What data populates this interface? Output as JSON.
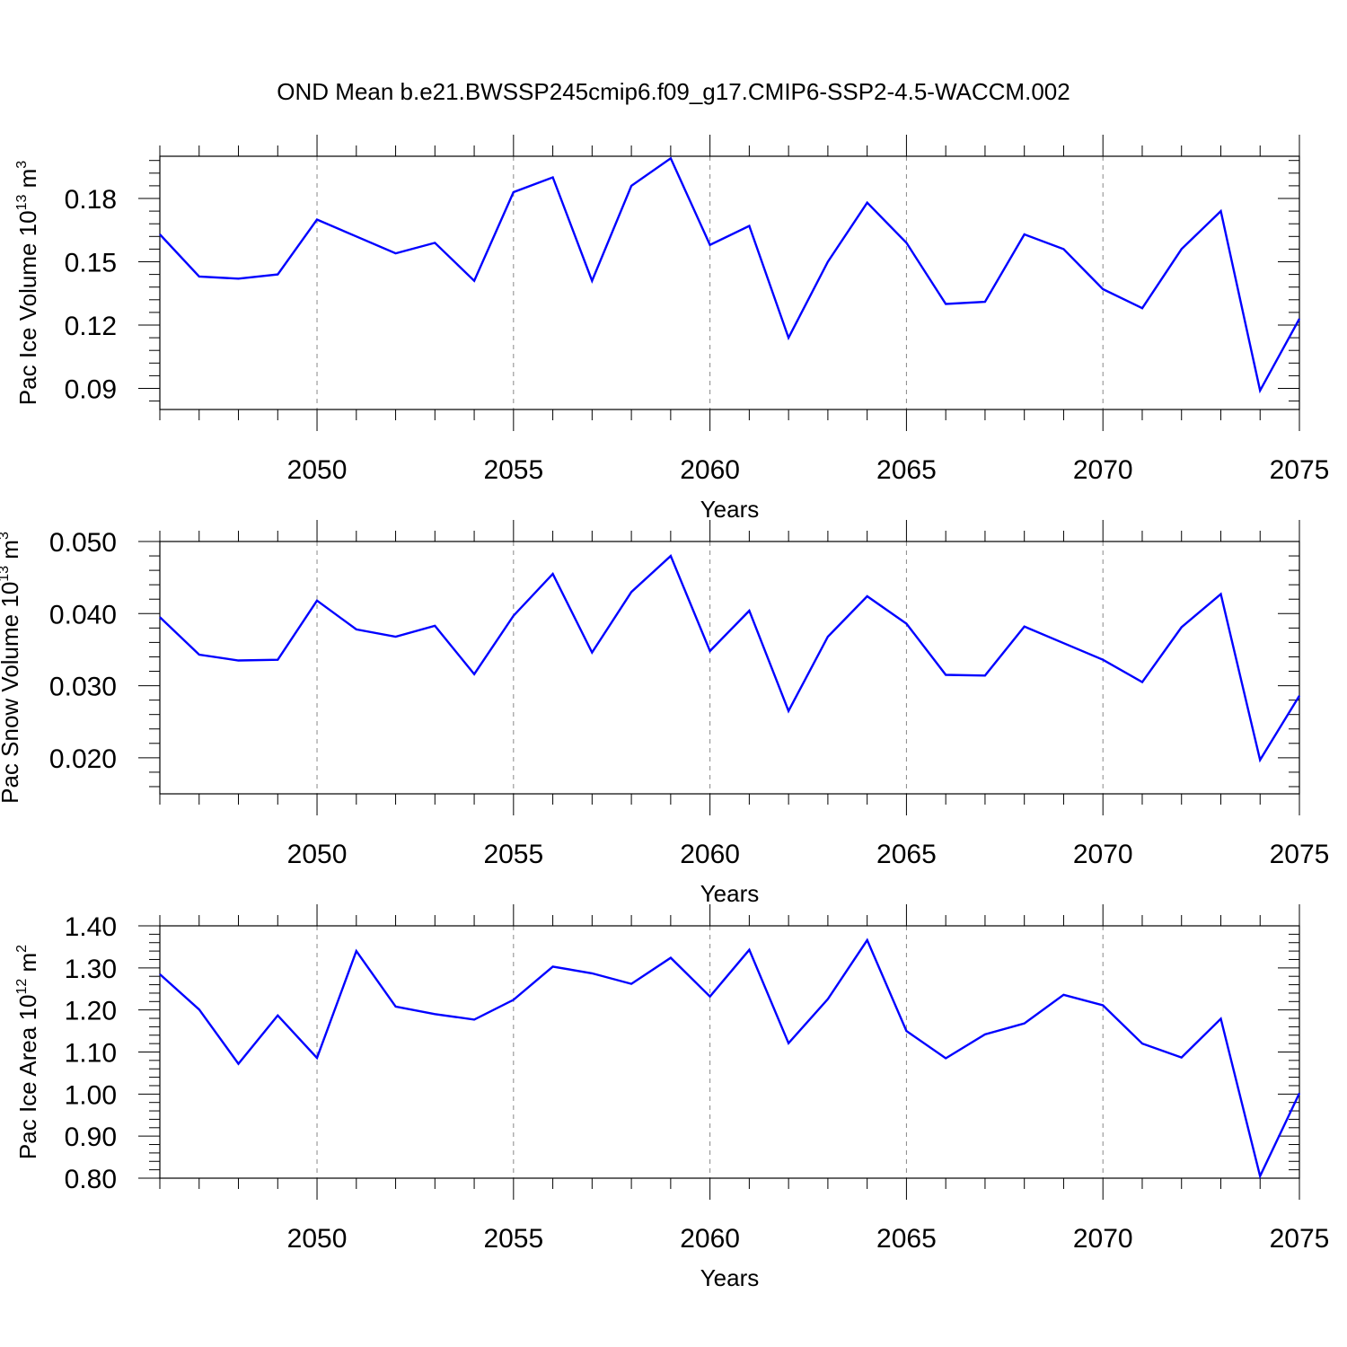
{
  "title": "OND Mean b.e21.BWSSP245cmip6.f09_g17.CMIP6-SSP2-4.5-WACCM.002",
  "chart_data": [
    {
      "type": "line",
      "ylabel": "Pac Ice Volume 10",
      "ylabel_exp": "13",
      "ylabel_unit": " m",
      "ylabel_unit_exp": "3",
      "xlabel": "Years",
      "xlim": [
        2046,
        2075
      ],
      "ylim": [
        0.08,
        0.2
      ],
      "yticks": [
        0.09,
        0.12,
        0.15,
        0.18
      ],
      "ytick_labels": [
        "0.09",
        "0.12",
        "0.15",
        "0.18"
      ],
      "xticks": [
        2050,
        2055,
        2060,
        2065,
        2070,
        2075
      ],
      "xtick_labels": [
        "2050",
        "2055",
        "2060",
        "2065",
        "2070",
        "2075"
      ],
      "grid": "vertical dashed at major x ticks",
      "color": "#0000ff",
      "x": [
        2046,
        2047,
        2048,
        2049,
        2050,
        2051,
        2052,
        2053,
        2054,
        2055,
        2056,
        2057,
        2058,
        2059,
        2060,
        2061,
        2062,
        2063,
        2064,
        2065,
        2066,
        2067,
        2068,
        2069,
        2070,
        2071,
        2072,
        2073,
        2074,
        2075
      ],
      "values": [
        0.163,
        0.143,
        0.142,
        0.144,
        0.17,
        0.162,
        0.154,
        0.159,
        0.141,
        0.183,
        0.19,
        0.141,
        0.186,
        0.199,
        0.158,
        0.167,
        0.114,
        0.15,
        0.178,
        0.159,
        0.13,
        0.131,
        0.163,
        0.156,
        0.137,
        0.128,
        0.156,
        0.174,
        0.089,
        0.123
      ]
    },
    {
      "type": "line",
      "ylabel": "Pac Snow Volume 10",
      "ylabel_exp": "13",
      "ylabel_unit": " m",
      "ylabel_unit_exp": "3",
      "xlabel": "Years",
      "xlim": [
        2046,
        2075
      ],
      "ylim": [
        0.015,
        0.05
      ],
      "yticks": [
        0.02,
        0.03,
        0.04,
        0.05
      ],
      "ytick_labels": [
        "0.020",
        "0.030",
        "0.040",
        "0.050"
      ],
      "xticks": [
        2050,
        2055,
        2060,
        2065,
        2070,
        2075
      ],
      "xtick_labels": [
        "2050",
        "2055",
        "2060",
        "2065",
        "2070",
        "2075"
      ],
      "grid": "vertical dashed at major x ticks",
      "color": "#0000ff",
      "x": [
        2046,
        2047,
        2048,
        2049,
        2050,
        2051,
        2052,
        2053,
        2054,
        2055,
        2056,
        2057,
        2058,
        2059,
        2060,
        2061,
        2062,
        2063,
        2064,
        2065,
        2066,
        2067,
        2068,
        2069,
        2070,
        2071,
        2072,
        2073,
        2074,
        2075
      ],
      "values": [
        0.0395,
        0.0343,
        0.0335,
        0.0336,
        0.0418,
        0.0378,
        0.0368,
        0.0383,
        0.0316,
        0.0397,
        0.0455,
        0.0346,
        0.043,
        0.048,
        0.0348,
        0.0404,
        0.0265,
        0.0368,
        0.0424,
        0.0386,
        0.0315,
        0.0314,
        0.0382,
        0.0359,
        0.0336,
        0.0305,
        0.0381,
        0.0427,
        0.0197,
        0.0286
      ]
    },
    {
      "type": "line",
      "ylabel": "Pac Ice Area 10",
      "ylabel_exp": "12",
      "ylabel_unit": " m",
      "ylabel_unit_exp": "2",
      "xlabel": "Years",
      "xlim": [
        2046,
        2075
      ],
      "ylim": [
        0.8,
        1.4
      ],
      "yticks": [
        0.8,
        0.9,
        1.0,
        1.1,
        1.2,
        1.3,
        1.4
      ],
      "ytick_labels": [
        "0.80",
        "0.90",
        "1.00",
        "1.10",
        "1.20",
        "1.30",
        "1.40"
      ],
      "xticks": [
        2050,
        2055,
        2060,
        2065,
        2070,
        2075
      ],
      "xtick_labels": [
        "2050",
        "2055",
        "2060",
        "2065",
        "2070",
        "2075"
      ],
      "grid": "vertical dashed at major x ticks",
      "color": "#0000ff",
      "x": [
        2046,
        2047,
        2048,
        2049,
        2050,
        2051,
        2052,
        2053,
        2054,
        2055,
        2056,
        2057,
        2058,
        2059,
        2060,
        2061,
        2062,
        2063,
        2064,
        2065,
        2066,
        2067,
        2068,
        2069,
        2070,
        2071,
        2072,
        2073,
        2074,
        2075
      ],
      "values": [
        1.285,
        1.201,
        1.072,
        1.187,
        1.086,
        1.34,
        1.208,
        1.19,
        1.177,
        1.224,
        1.303,
        1.287,
        1.262,
        1.324,
        1.232,
        1.343,
        1.121,
        1.226,
        1.366,
        1.15,
        1.085,
        1.142,
        1.168,
        1.236,
        1.211,
        1.12,
        1.087,
        1.179,
        0.805,
        1.002
      ]
    }
  ]
}
